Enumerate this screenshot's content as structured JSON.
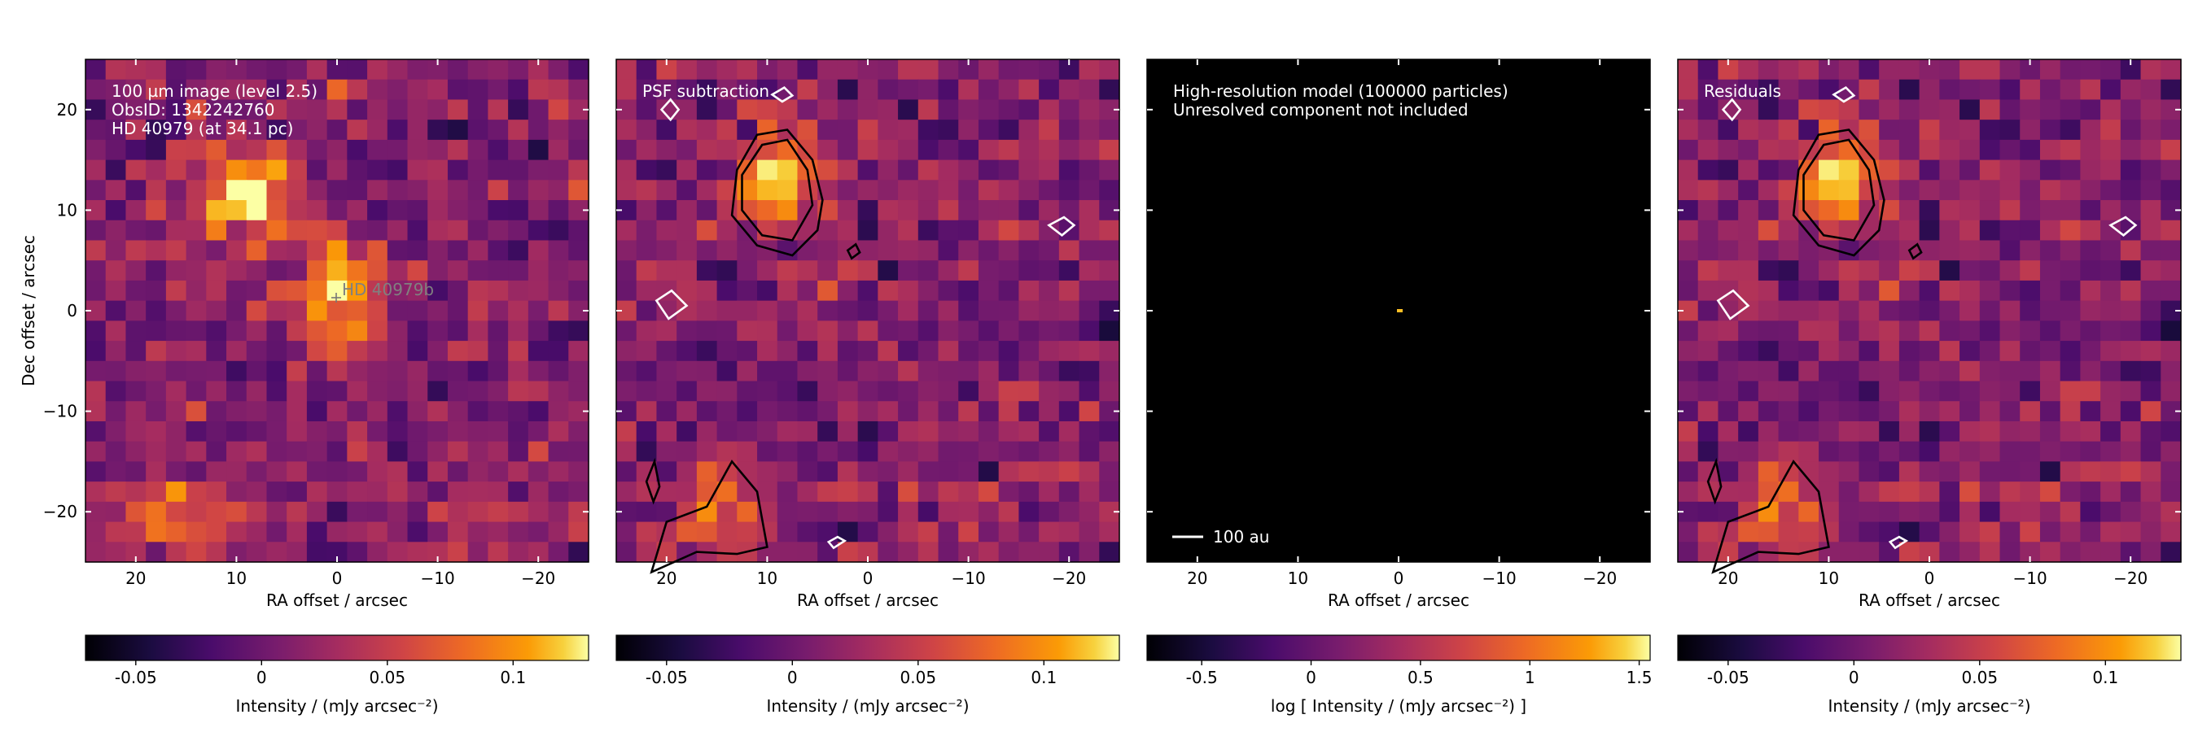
{
  "chart_data": [
    {
      "type": "heatmap",
      "panel_lines": [
        "100 µm image (level 2.5)",
        "ObsID: 1342242760",
        "HD 40979 (at 34.1 pc)"
      ],
      "marker_label": "HD 40979b",
      "marker_position": {
        "x": -0.5,
        "y": 1.2
      },
      "xlabel": "RA offset / arcsec",
      "ylabel": "Dec offset / arcsec",
      "xlim": [
        25,
        -25
      ],
      "ylim": [
        -25,
        25
      ],
      "xticks": [
        20,
        10,
        0,
        -10,
        -20
      ],
      "xtick_labels": [
        "20",
        "10",
        "0",
        "−10",
        "−20"
      ],
      "yticks": [
        20,
        10,
        0,
        -10,
        -20
      ],
      "ytick_labels": [
        "20",
        "10",
        "0",
        "−10",
        "−20"
      ],
      "colormap": "inferno",
      "colorbar": {
        "range": [
          -0.07,
          0.13
        ],
        "ticks": [
          -0.05,
          0,
          0.05,
          0.1
        ],
        "tick_labels": [
          "-0.05",
          "0",
          "0.05",
          "0.1"
        ],
        "label": "Intensity / (mJy arcsec⁻²)"
      },
      "bright_sources": [
        {
          "x": 8.5,
          "y": 12,
          "intensity": 0.12
        },
        {
          "x": -0.5,
          "y": 1.5,
          "intensity": 0.13
        },
        {
          "x": 16,
          "y": -20,
          "intensity": 0.08
        }
      ]
    },
    {
      "type": "heatmap",
      "panel_lines": [
        "PSF subtraction"
      ],
      "xlabel": "RA offset / arcsec",
      "xlim": [
        25,
        -25
      ],
      "ylim": [
        -25,
        25
      ],
      "xticks": [
        20,
        10,
        0,
        -10,
        -20
      ],
      "xtick_labels": [
        "20",
        "10",
        "0",
        "−10",
        "−20"
      ],
      "colormap": "inferno",
      "contours": {
        "black": "positive residual significance",
        "white": "negative residual significance"
      },
      "colorbar": {
        "range": [
          -0.07,
          0.13
        ],
        "ticks": [
          -0.05,
          0,
          0.05,
          0.1
        ],
        "tick_labels": [
          "-0.05",
          "0",
          "0.05",
          "0.1"
        ],
        "label": "Intensity / (mJy arcsec⁻²)"
      },
      "bright_sources": [
        {
          "x": 9,
          "y": 13,
          "intensity": 0.12
        },
        {
          "x": 15,
          "y": -20,
          "intensity": 0.07
        }
      ]
    },
    {
      "type": "heatmap",
      "panel_lines": [
        "High-resolution model (100000 particles)",
        "Unresolved component not included"
      ],
      "scalebar_label": "100 au",
      "xlabel": "RA offset / arcsec",
      "xlim": [
        25,
        -25
      ],
      "ylim": [
        -25,
        25
      ],
      "xticks": [
        20,
        10,
        0,
        -10,
        -20
      ],
      "xtick_labels": [
        "20",
        "10",
        "0",
        "−10",
        "−20"
      ],
      "colormap": "inferno",
      "model_source": {
        "x": 0,
        "y": 0
      },
      "colorbar": {
        "range": [
          -0.75,
          1.55
        ],
        "ticks": [
          -0.5,
          0,
          0.5,
          1,
          1.5
        ],
        "tick_labels": [
          "-0.5",
          "0",
          "0.5",
          "1",
          "1.5"
        ],
        "label": "log [ Intensity / (mJy arcsec⁻²) ]"
      }
    },
    {
      "type": "heatmap",
      "panel_lines": [
        "Residuals"
      ],
      "xlabel": "RA offset / arcsec",
      "xlim": [
        25,
        -25
      ],
      "ylim": [
        -25,
        25
      ],
      "xticks": [
        20,
        10,
        0,
        -10,
        -20
      ],
      "xtick_labels": [
        "20",
        "10",
        "0",
        "−10",
        "−20"
      ],
      "colormap": "inferno",
      "colorbar": {
        "range": [
          -0.07,
          0.13
        ],
        "ticks": [
          -0.05,
          0,
          0.05,
          0.1
        ],
        "tick_labels": [
          "-0.05",
          "0",
          "0.05",
          "0.1"
        ],
        "label": "Intensity / (mJy arcsec⁻²)"
      },
      "bright_sources": [
        {
          "x": 9,
          "y": 13,
          "intensity": 0.12
        },
        {
          "x": 15,
          "y": -20,
          "intensity": 0.07
        }
      ]
    }
  ]
}
